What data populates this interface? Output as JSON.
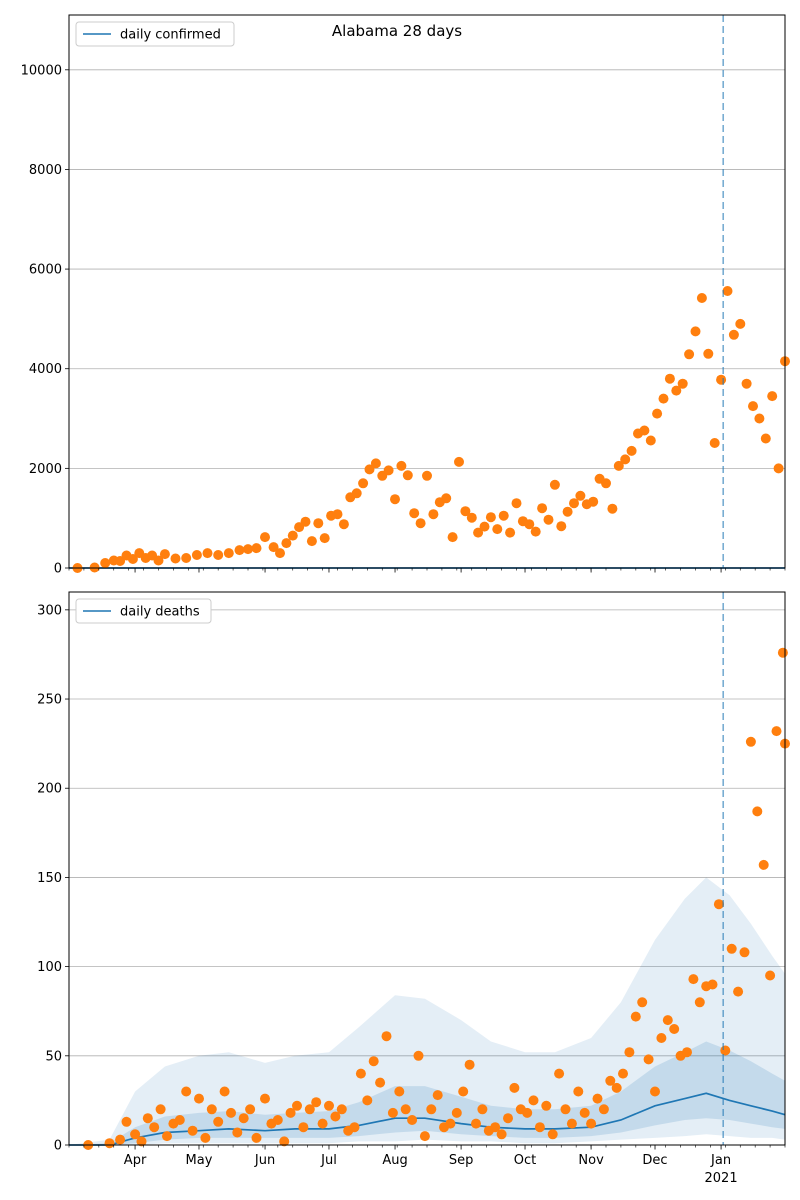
{
  "title": "Alabama 28 days",
  "colors": {
    "model_line": "#1f77b4",
    "observed_points": "#ff7f0e",
    "band": "#1f77b4",
    "vline": "#1f77b4",
    "grid": "#b0b0b0"
  },
  "chart_data": [
    {
      "type": "scatter",
      "legend": "daily confirmed",
      "legend_placement": "top-left",
      "title": "Alabama 28 days",
      "grid": "y",
      "ylim": [
        0,
        11100
      ],
      "yticks": [
        0,
        2000,
        4000,
        6000,
        8000,
        10000
      ],
      "xlim": [
        "2020-03-01",
        "2021-01-31"
      ],
      "vline": "2021-01-02",
      "model_line": {
        "x": [
          "2020-03-01",
          "2021-01-31"
        ],
        "y": [
          0,
          0
        ]
      },
      "points": {
        "x": [
          "2020-03-05",
          "2020-03-13",
          "2020-03-18",
          "2020-03-22",
          "2020-03-25",
          "2020-03-28",
          "2020-03-31",
          "2020-04-03",
          "2020-04-06",
          "2020-04-09",
          "2020-04-12",
          "2020-04-15",
          "2020-04-20",
          "2020-04-25",
          "2020-04-30",
          "2020-05-05",
          "2020-05-10",
          "2020-05-15",
          "2020-05-20",
          "2020-05-24",
          "2020-05-28",
          "2020-06-01",
          "2020-06-05",
          "2020-06-08",
          "2020-06-11",
          "2020-06-14",
          "2020-06-17",
          "2020-06-20",
          "2020-06-23",
          "2020-06-26",
          "2020-06-29",
          "2020-07-02",
          "2020-07-05",
          "2020-07-08",
          "2020-07-11",
          "2020-07-14",
          "2020-07-17",
          "2020-07-20",
          "2020-07-23",
          "2020-07-26",
          "2020-07-29",
          "2020-08-01",
          "2020-08-04",
          "2020-08-07",
          "2020-08-10",
          "2020-08-13",
          "2020-08-16",
          "2020-08-19",
          "2020-08-22",
          "2020-08-25",
          "2020-08-28",
          "2020-08-31",
          "2020-09-03",
          "2020-09-06",
          "2020-09-09",
          "2020-09-12",
          "2020-09-15",
          "2020-09-18",
          "2020-09-21",
          "2020-09-24",
          "2020-09-27",
          "2020-09-30",
          "2020-10-03",
          "2020-10-06",
          "2020-10-09",
          "2020-10-12",
          "2020-10-15",
          "2020-10-18",
          "2020-10-21",
          "2020-10-24",
          "2020-10-27",
          "2020-10-30",
          "2020-11-02",
          "2020-11-05",
          "2020-11-08",
          "2020-11-11",
          "2020-11-14",
          "2020-11-17",
          "2020-11-20",
          "2020-11-23",
          "2020-11-26",
          "2020-11-29",
          "2020-12-02",
          "2020-12-05",
          "2020-12-08",
          "2020-12-11",
          "2020-12-14",
          "2020-12-17",
          "2020-12-20",
          "2020-12-23",
          "2020-12-26",
          "2020-12-29",
          "2021-01-01",
          "2021-01-04",
          "2021-01-07",
          "2021-01-10",
          "2021-01-13",
          "2021-01-16",
          "2021-01-19",
          "2021-01-22",
          "2021-01-25",
          "2021-01-28",
          "2021-01-31"
        ],
        "y": [
          0,
          10,
          100,
          150,
          140,
          250,
          180,
          300,
          200,
          250,
          150,
          280,
          190,
          200,
          260,
          300,
          260,
          300,
          360,
          380,
          400,
          620,
          420,
          300,
          500,
          650,
          820,
          930,
          540,
          900,
          600,
          1050,
          1080,
          880,
          1420,
          1500,
          1700,
          1980,
          2100,
          1850,
          1960,
          1380,
          2050,
          1860,
          1100,
          900,
          1850,
          1080,
          1320,
          1400,
          620,
          2130,
          1140,
          1010,
          710,
          830,
          1020,
          780,
          1050,
          710,
          1300,
          940,
          880,
          730,
          1200,
          970,
          1670,
          840,
          1130,
          1300,
          1450,
          1280,
          1330,
          1790,
          1700,
          1190,
          2050,
          2180,
          2350,
          2700,
          2760,
          2560,
          3100,
          3400,
          3800,
          3560,
          3700,
          4290,
          4750,
          5420,
          4300,
          2510,
          3780,
          5560,
          4680,
          4900,
          3700,
          3250,
          3000,
          2600,
          3450,
          2000,
          4150
        ]
      }
    },
    {
      "type": "scatter",
      "legend": "daily deaths",
      "legend_placement": "top-left",
      "grid": "y",
      "ylim": [
        0,
        310
      ],
      "yticks": [
        0,
        50,
        100,
        150,
        200,
        250,
        300
      ],
      "xlim": [
        "2020-03-01",
        "2021-01-31"
      ],
      "xticks": [
        "Apr",
        "May",
        "Jun",
        "Jul",
        "Aug",
        "Sep",
        "Oct",
        "Nov",
        "Dec",
        "Jan"
      ],
      "year_label": "2021",
      "vline": "2021-01-02",
      "model_line": {
        "x": [
          "2020-03-01",
          "2020-03-20",
          "2020-04-01",
          "2020-04-15",
          "2020-05-01",
          "2020-05-15",
          "2020-06-01",
          "2020-06-15",
          "2020-07-01",
          "2020-07-15",
          "2020-08-01",
          "2020-08-15",
          "2020-09-01",
          "2020-09-15",
          "2020-10-01",
          "2020-10-15",
          "2020-11-01",
          "2020-11-15",
          "2020-12-01",
          "2020-12-15",
          "2020-12-25",
          "2021-01-05",
          "2021-01-15",
          "2021-01-25",
          "2021-01-31"
        ],
        "y": [
          0,
          0,
          4,
          7,
          8,
          9,
          8,
          9,
          9,
          11,
          15,
          15,
          12,
          10,
          9,
          9,
          10,
          14,
          22,
          26,
          29,
          25,
          22,
          19,
          17
        ]
      },
      "band_inner": {
        "x": [
          "2020-03-01",
          "2020-03-20",
          "2020-04-01",
          "2020-04-15",
          "2020-05-01",
          "2020-05-15",
          "2020-06-01",
          "2020-06-15",
          "2020-07-01",
          "2020-07-15",
          "2020-08-01",
          "2020-08-15",
          "2020-09-01",
          "2020-09-15",
          "2020-10-01",
          "2020-10-15",
          "2020-11-01",
          "2020-11-15",
          "2020-12-01",
          "2020-12-15",
          "2020-12-25",
          "2021-01-05",
          "2021-01-15",
          "2021-01-25",
          "2021-01-31"
        ],
        "low": [
          0,
          0,
          1,
          3,
          4,
          4,
          4,
          4,
          4,
          5,
          7,
          8,
          6,
          5,
          4,
          4,
          5,
          7,
          11,
          14,
          15,
          14,
          12,
          10,
          9
        ],
        "high": [
          0,
          1,
          10,
          16,
          18,
          19,
          17,
          18,
          19,
          24,
          33,
          33,
          27,
          22,
          20,
          20,
          22,
          30,
          44,
          52,
          58,
          53,
          47,
          40,
          36
        ]
      },
      "band_outer": {
        "x": [
          "2020-03-01",
          "2020-03-20",
          "2020-04-01",
          "2020-04-15",
          "2020-05-01",
          "2020-05-15",
          "2020-06-01",
          "2020-06-15",
          "2020-07-01",
          "2020-07-15",
          "2020-08-01",
          "2020-08-15",
          "2020-09-01",
          "2020-09-15",
          "2020-10-01",
          "2020-10-15",
          "2020-11-01",
          "2020-11-15",
          "2020-12-01",
          "2020-12-15",
          "2020-12-25",
          "2021-01-05",
          "2021-01-15",
          "2021-01-25",
          "2021-01-31"
        ],
        "low": [
          0,
          0,
          0,
          1,
          1,
          1,
          1,
          1,
          1,
          2,
          2,
          3,
          2,
          2,
          1,
          1,
          2,
          3,
          4,
          5,
          6,
          5,
          4,
          4,
          3
        ],
        "high": [
          0,
          3,
          30,
          44,
          50,
          52,
          46,
          50,
          52,
          66,
          84,
          82,
          70,
          58,
          52,
          52,
          60,
          80,
          115,
          138,
          150,
          140,
          124,
          106,
          96
        ]
      },
      "points": {
        "x": [
          "2020-03-10",
          "2020-03-20",
          "2020-03-25",
          "2020-03-28",
          "2020-04-01",
          "2020-04-04",
          "2020-04-07",
          "2020-04-10",
          "2020-04-13",
          "2020-04-16",
          "2020-04-19",
          "2020-04-22",
          "2020-04-25",
          "2020-04-28",
          "2020-05-01",
          "2020-05-04",
          "2020-05-07",
          "2020-05-10",
          "2020-05-13",
          "2020-05-16",
          "2020-05-19",
          "2020-05-22",
          "2020-05-25",
          "2020-05-28",
          "2020-06-01",
          "2020-06-04",
          "2020-06-07",
          "2020-06-10",
          "2020-06-13",
          "2020-06-16",
          "2020-06-19",
          "2020-06-22",
          "2020-06-25",
          "2020-06-28",
          "2020-07-01",
          "2020-07-04",
          "2020-07-07",
          "2020-07-10",
          "2020-07-13",
          "2020-07-16",
          "2020-07-19",
          "2020-07-22",
          "2020-07-25",
          "2020-07-28",
          "2020-07-31",
          "2020-08-03",
          "2020-08-06",
          "2020-08-09",
          "2020-08-12",
          "2020-08-15",
          "2020-08-18",
          "2020-08-21",
          "2020-08-24",
          "2020-08-27",
          "2020-08-30",
          "2020-09-02",
          "2020-09-05",
          "2020-09-08",
          "2020-09-11",
          "2020-09-14",
          "2020-09-17",
          "2020-09-20",
          "2020-09-23",
          "2020-09-26",
          "2020-09-29",
          "2020-10-02",
          "2020-10-05",
          "2020-10-08",
          "2020-10-11",
          "2020-10-14",
          "2020-10-17",
          "2020-10-20",
          "2020-10-23",
          "2020-10-26",
          "2020-10-29",
          "2020-11-01",
          "2020-11-04",
          "2020-11-07",
          "2020-11-10",
          "2020-11-13",
          "2020-11-16",
          "2020-11-19",
          "2020-11-22",
          "2020-11-25",
          "2020-11-28",
          "2020-12-01",
          "2020-12-04",
          "2020-12-07",
          "2020-12-10",
          "2020-12-13",
          "2020-12-16",
          "2020-12-19",
          "2020-12-22",
          "2020-12-25",
          "2020-12-28",
          "2020-12-31",
          "2021-01-03",
          "2021-01-06",
          "2021-01-09",
          "2021-01-12",
          "2021-01-15",
          "2021-01-18",
          "2021-01-21",
          "2021-01-24",
          "2021-01-27",
          "2021-01-30",
          "2021-01-31"
        ],
        "y": [
          0,
          1,
          3,
          13,
          6,
          2,
          15,
          10,
          20,
          5,
          12,
          14,
          30,
          8,
          26,
          4,
          20,
          13,
          30,
          18,
          7,
          15,
          20,
          4,
          26,
          12,
          14,
          2,
          18,
          22,
          10,
          20,
          24,
          12,
          22,
          16,
          20,
          8,
          10,
          40,
          25,
          47,
          35,
          61,
          18,
          30,
          20,
          14,
          50,
          5,
          20,
          28,
          10,
          12,
          18,
          30,
          45,
          12,
          20,
          8,
          10,
          6,
          15,
          32,
          20,
          18,
          25,
          10,
          22,
          6,
          40,
          20,
          12,
          30,
          18,
          12,
          26,
          20,
          36,
          32,
          40,
          52,
          72,
          80,
          48,
          30,
          60,
          70,
          65,
          50,
          52,
          93,
          80,
          89,
          90,
          135,
          53,
          110,
          86,
          108,
          226,
          187,
          157,
          95,
          232,
          276,
          225
        ]
      }
    }
  ]
}
